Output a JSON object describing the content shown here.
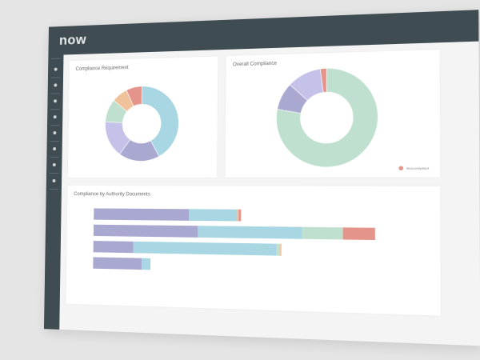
{
  "app": {
    "logo_text": "now"
  },
  "sidebar": {
    "item_count": 8
  },
  "colors": {
    "purple": "#a9a8d1",
    "lightblue": "#a9d6e3",
    "mint": "#bfe0cf",
    "orange": "#f0c29b",
    "salmon": "#e4948a",
    "lavender": "#c4c2e8"
  },
  "cards": {
    "requirement": {
      "title": "Compliance Requirement"
    },
    "overall": {
      "title": "Overall Compliance",
      "legend_label": "Noncompliant"
    },
    "authority": {
      "title": "Compliance by Authority Documents"
    }
  },
  "chart_data": [
    {
      "type": "pie",
      "title": "Compliance Requirement",
      "donut": true,
      "slices": [
        {
          "value": 42,
          "color": "#a9d6e3"
        },
        {
          "value": 18,
          "color": "#a9a8d1"
        },
        {
          "value": 16,
          "color": "#c4c2e8"
        },
        {
          "value": 10,
          "color": "#bfe0cf"
        },
        {
          "value": 7,
          "color": "#f0c29b"
        },
        {
          "value": 7,
          "color": "#e4948a"
        }
      ]
    },
    {
      "type": "pie",
      "title": "Overall Compliance",
      "donut": true,
      "slices": [
        {
          "value": 78,
          "color": "#bfe0cf"
        },
        {
          "value": 9,
          "color": "#a9a8d1"
        },
        {
          "value": 11,
          "color": "#c4c2e8"
        },
        {
          "value": 2,
          "color": "#e4948a",
          "label": "Noncompliant"
        }
      ],
      "legend": [
        "Noncompliant"
      ]
    },
    {
      "type": "bar",
      "orientation": "horizontal",
      "stacked": true,
      "title": "Compliance by Authority Documents",
      "categories": [
        "",
        "",
        "",
        ""
      ],
      "series": [
        {
          "color": "#a9a8d1",
          "values": [
            33,
            36,
            14,
            17
          ]
        },
        {
          "color": "#a9d6e3",
          "values": [
            16,
            34,
            48,
            3
          ]
        },
        {
          "color": "#bfe0cf",
          "values": [
            0,
            13,
            1,
            0
          ]
        },
        {
          "color": "#f0c29b",
          "values": [
            0.5,
            0,
            0.5,
            0
          ]
        },
        {
          "color": "#e4948a",
          "values": [
            0.8,
            10,
            0,
            0
          ]
        }
      ],
      "xlim": [
        0,
        100
      ]
    }
  ]
}
